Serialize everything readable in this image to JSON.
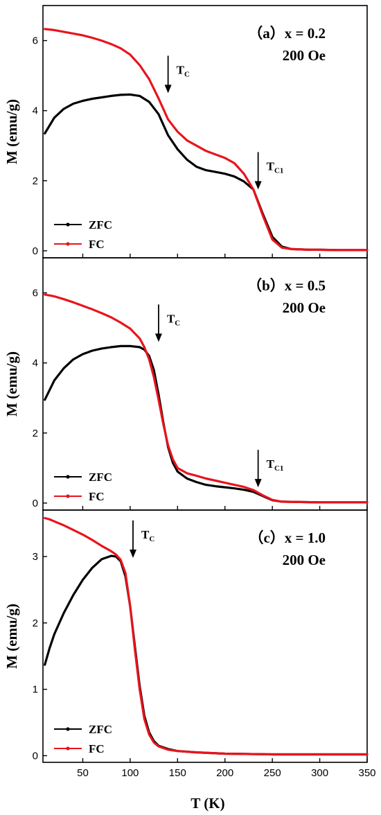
{
  "chart_data": {
    "type": "line",
    "xlabel": "T (K)",
    "ylabel": "M (emu/g)",
    "xlim": [
      8,
      350
    ],
    "x_ticks": [
      "50",
      "100",
      "150",
      "200",
      "250",
      "300",
      "350"
    ],
    "x_tick_values": [
      50,
      100,
      150,
      200,
      250,
      300,
      350
    ],
    "legend": {
      "placement": "bottom-left",
      "entries": [
        "ZFC",
        "FC"
      ]
    },
    "colors": {
      "ZFC": "#000000",
      "FC": "#e8141c"
    },
    "panels": [
      {
        "label": "（a）x = 0.2",
        "field": "200 Oe",
        "ylim": [
          -0.2,
          7.0
        ],
        "y_ticks": [
          "0",
          "2",
          "4",
          "6"
        ],
        "y_tick_values": [
          0,
          2,
          4,
          6
        ],
        "annotations": [
          {
            "main": "T",
            "sub": "C",
            "x": 140,
            "y": 4.5
          },
          {
            "main": "T",
            "sub": "C1",
            "x": 235,
            "y": 1.75
          }
        ],
        "series": [
          {
            "name": "ZFC",
            "x": [
              10,
              20,
              30,
              40,
              50,
              60,
              70,
              80,
              90,
              100,
              110,
              120,
              130,
              140,
              150,
              160,
              170,
              180,
              190,
              200,
              210,
              220,
              230,
              240,
              250,
              260,
              270,
              280,
              290,
              300,
              320,
              350
            ],
            "y": [
              3.35,
              3.8,
              4.05,
              4.2,
              4.28,
              4.34,
              4.38,
              4.42,
              4.45,
              4.46,
              4.42,
              4.25,
              3.9,
              3.3,
              2.9,
              2.6,
              2.4,
              2.3,
              2.25,
              2.2,
              2.12,
              1.98,
              1.75,
              1.05,
              0.4,
              0.12,
              0.05,
              0.04,
              0.03,
              0.03,
              0.02,
              0.02
            ]
          },
          {
            "name": "FC",
            "x": [
              10,
              20,
              30,
              40,
              50,
              60,
              70,
              80,
              90,
              100,
              110,
              120,
              130,
              140,
              150,
              160,
              170,
              180,
              190,
              200,
              210,
              220,
              230,
              240,
              250,
              260,
              270,
              280,
              290,
              300,
              320,
              350
            ],
            "y": [
              6.33,
              6.3,
              6.25,
              6.2,
              6.15,
              6.08,
              6.0,
              5.9,
              5.78,
              5.6,
              5.3,
              4.9,
              4.35,
              3.75,
              3.4,
              3.15,
              3.0,
              2.85,
              2.75,
              2.65,
              2.5,
              2.2,
              1.75,
              1.0,
              0.32,
              0.09,
              0.05,
              0.04,
              0.03,
              0.03,
              0.02,
              0.02
            ]
          }
        ]
      },
      {
        "label": "（b）x = 0.5",
        "field": "200 Oe",
        "ylim": [
          -0.2,
          7.0
        ],
        "y_ticks": [
          "0",
          "2",
          "4",
          "6"
        ],
        "y_tick_values": [
          0,
          2,
          4,
          6
        ],
        "annotations": [
          {
            "main": "T",
            "sub": "C",
            "x": 130,
            "y": 4.6
          },
          {
            "main": "T",
            "sub": "C1",
            "x": 235,
            "y": 0.45
          }
        ],
        "series": [
          {
            "name": "ZFC",
            "x": [
              10,
              20,
              30,
              40,
              50,
              60,
              70,
              80,
              90,
              100,
              110,
              115,
              120,
              125,
              130,
              135,
              140,
              145,
              150,
              160,
              170,
              180,
              190,
              200,
              210,
              220,
              230,
              240,
              250,
              260,
              280,
              300,
              320,
              350
            ],
            "y": [
              2.95,
              3.5,
              3.85,
              4.1,
              4.25,
              4.35,
              4.41,
              4.45,
              4.48,
              4.48,
              4.45,
              4.38,
              4.2,
              3.8,
              3.1,
              2.3,
              1.6,
              1.15,
              0.9,
              0.7,
              0.6,
              0.52,
              0.48,
              0.45,
              0.42,
              0.38,
              0.32,
              0.2,
              0.08,
              0.04,
              0.03,
              0.02,
              0.02,
              0.02
            ]
          },
          {
            "name": "FC",
            "x": [
              10,
              20,
              30,
              40,
              50,
              60,
              70,
              80,
              90,
              100,
              110,
              115,
              120,
              125,
              130,
              135,
              140,
              145,
              150,
              160,
              170,
              180,
              190,
              200,
              210,
              220,
              230,
              240,
              250,
              260,
              280,
              300,
              320,
              350
            ],
            "y": [
              5.95,
              5.9,
              5.82,
              5.73,
              5.63,
              5.53,
              5.42,
              5.3,
              5.15,
              4.98,
              4.7,
              4.45,
              4.1,
              3.6,
              2.95,
              2.25,
              1.65,
              1.25,
              1.0,
              0.85,
              0.78,
              0.7,
              0.64,
              0.58,
              0.52,
              0.46,
              0.37,
              0.22,
              0.09,
              0.04,
              0.03,
              0.02,
              0.02,
              0.02
            ]
          }
        ]
      },
      {
        "label": "（c）x = 1.0",
        "field": "200 Oe",
        "ylim": [
          -0.1,
          3.7
        ],
        "y_ticks": [
          "0",
          "1",
          "2",
          "3"
        ],
        "y_tick_values": [
          0,
          1,
          2,
          3
        ],
        "annotations": [
          {
            "main": "T",
            "sub": "C",
            "x": 103,
            "y": 2.98
          }
        ],
        "series": [
          {
            "name": "ZFC",
            "x": [
              10,
              15,
              20,
              30,
              40,
              50,
              60,
              70,
              80,
              85,
              90,
              95,
              100,
              105,
              110,
              115,
              120,
              125,
              130,
              140,
              150,
              170,
              200,
              250,
              300,
              350
            ],
            "y": [
              1.37,
              1.62,
              1.83,
              2.15,
              2.42,
              2.65,
              2.83,
              2.96,
              3.01,
              3.0,
              2.93,
              2.7,
              2.25,
              1.65,
              1.05,
              0.6,
              0.35,
              0.22,
              0.15,
              0.1,
              0.07,
              0.05,
              0.03,
              0.02,
              0.02,
              0.02
            ]
          },
          {
            "name": "FC",
            "x": [
              10,
              15,
              20,
              30,
              40,
              50,
              60,
              70,
              80,
              85,
              90,
              95,
              100,
              105,
              110,
              115,
              120,
              125,
              130,
              140,
              150,
              170,
              200,
              250,
              300,
              350
            ],
            "y": [
              3.58,
              3.56,
              3.53,
              3.47,
              3.4,
              3.33,
              3.25,
              3.16,
              3.08,
              3.03,
              2.95,
              2.75,
              2.25,
              1.6,
              1.0,
              0.55,
              0.32,
              0.2,
              0.14,
              0.09,
              0.07,
              0.05,
              0.03,
              0.02,
              0.02,
              0.02
            ]
          }
        ]
      }
    ]
  }
}
